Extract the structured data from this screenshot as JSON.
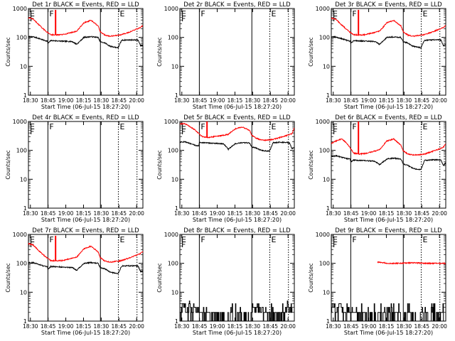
{
  "colors": {
    "events": "#000000",
    "lld": "#ff0000",
    "background": "#ffffff",
    "axes": "#000000"
  },
  "common": {
    "ylabel": "Counts/sec",
    "xlabel": "Start Time (06-Jul-15 18:27:20)",
    "y_scale": "log",
    "y_range": [
      1,
      1000
    ],
    "y_ticks": [
      {
        "value": 1,
        "label": "1"
      },
      {
        "value": 10,
        "label": "10"
      },
      {
        "value": 100,
        "label": "100"
      },
      {
        "value": 1000,
        "label": "1000"
      }
    ],
    "x_range_minutes": [
      1.0,
      98.0
    ],
    "x_ticks": [
      {
        "minute": 2.67,
        "label": "18:30"
      },
      {
        "minute": 17.67,
        "label": "18:45"
      },
      {
        "minute": 32.67,
        "label": "19:00"
      },
      {
        "minute": 47.67,
        "label": "18:15"
      },
      {
        "minute": 62.67,
        "label": "18:30"
      },
      {
        "minute": 77.67,
        "label": "18:45"
      },
      {
        "minute": 92.67,
        "label": "20:00"
      }
    ],
    "markers": [
      {
        "minute": 17.5,
        "label": "F",
        "style": "solid"
      },
      {
        "minute": 62.0,
        "label": "",
        "style": "solid"
      },
      {
        "minute": 77.2,
        "label": "E",
        "style": "dotted"
      },
      {
        "minute": 93.0,
        "label": "",
        "style": "dotted"
      }
    ],
    "left_markers": [
      {
        "label": "E"
      },
      {
        "label": "F"
      }
    ]
  },
  "chart_data": [
    {
      "type": "line",
      "title": "Det 1r BLACK = Events, RED = LLD",
      "series": [
        {
          "name": "Events",
          "color": "#000000",
          "profile": "normal",
          "x": [
            1,
            5,
            10,
            14,
            17,
            17.5,
            20,
            30,
            38,
            42,
            48,
            54,
            60,
            62,
            66,
            70,
            74,
            77,
            80,
            86,
            92,
            94,
            96,
            98
          ],
          "y": [
            105,
            105,
            92,
            80,
            75,
            62,
            78,
            74,
            72,
            58,
            100,
            106,
            100,
            70,
            64,
            50,
            46,
            44,
            80,
            82,
            82,
            80,
            52,
            55
          ]
        },
        {
          "name": "LLD",
          "color": "#ff0000",
          "profile": "normal",
          "x": [
            1,
            5,
            10,
            14,
            17,
            20,
            25,
            30,
            38,
            42,
            48,
            54,
            60,
            62,
            66,
            70,
            74,
            77,
            80,
            86,
            92,
            96,
            98
          ],
          "y": [
            480,
            430,
            270,
            190,
            150,
            125,
            122,
            125,
            150,
            165,
            320,
            390,
            250,
            155,
            120,
            110,
            115,
            120,
            125,
            150,
            190,
            220,
            260
          ]
        }
      ],
      "spike": {
        "minute": 24,
        "value": 900,
        "color": "#ff0000"
      }
    },
    {
      "type": "line",
      "title": "Det 2r BLACK = Events, RED = LLD",
      "series": []
    },
    {
      "type": "line",
      "title": "Det 3r BLACK = Events, RED = LLD",
      "series": [
        {
          "name": "Events",
          "color": "#000000",
          "profile": "normal",
          "x": [
            1,
            5,
            10,
            14,
            17,
            17.5,
            20,
            30,
            38,
            42,
            48,
            54,
            60,
            62,
            66,
            70,
            74,
            77,
            80,
            86,
            92,
            94,
            96,
            98
          ],
          "y": [
            105,
            102,
            90,
            80,
            75,
            62,
            78,
            74,
            72,
            58,
            100,
            104,
            100,
            70,
            64,
            50,
            46,
            44,
            80,
            82,
            82,
            80,
            52,
            55
          ]
        },
        {
          "name": "LLD",
          "color": "#ff0000",
          "profile": "normal",
          "x": [
            1,
            5,
            10,
            14,
            17,
            20,
            25,
            30,
            38,
            42,
            48,
            54,
            60,
            62,
            66,
            70,
            74,
            77,
            80,
            86,
            92,
            96,
            98
          ],
          "y": [
            470,
            420,
            265,
            190,
            150,
            125,
            122,
            125,
            150,
            165,
            320,
            385,
            250,
            155,
            120,
            110,
            115,
            120,
            125,
            150,
            190,
            220,
            260
          ]
        }
      ],
      "spike": {
        "minute": 24,
        "value": 900,
        "color": "#ff0000"
      }
    },
    {
      "type": "line",
      "title": "Det 4r BLACK = Events, RED = LLD",
      "series": []
    },
    {
      "type": "line",
      "title": "Det 5r BLACK = Events, RED = LLD",
      "series": [
        {
          "name": "Events",
          "color": "#000000",
          "profile": "normal",
          "x": [
            1,
            5,
            10,
            14,
            17,
            17.5,
            20,
            30,
            38,
            42,
            48,
            54,
            60,
            62,
            66,
            70,
            74,
            77,
            80,
            86,
            92,
            94,
            96,
            98
          ],
          "y": [
            190,
            200,
            170,
            150,
            140,
            190,
            185,
            175,
            170,
            110,
            170,
            185,
            180,
            130,
            120,
            100,
            95,
            95,
            185,
            190,
            190,
            175,
            115,
            125
          ]
        },
        {
          "name": "LLD",
          "color": "#ff0000",
          "profile": "normal",
          "x": [
            1,
            5,
            10,
            14,
            17,
            20,
            25,
            30,
            38,
            42,
            48,
            54,
            60,
            62,
            66,
            70,
            74,
            77,
            80,
            86,
            92,
            96,
            98
          ],
          "y": [
            820,
            850,
            650,
            500,
            380,
            300,
            280,
            300,
            330,
            360,
            560,
            640,
            500,
            330,
            260,
            230,
            225,
            230,
            240,
            280,
            330,
            380,
            600
          ]
        }
      ],
      "spike": {
        "minute": 24,
        "value": 1000,
        "color": "#ff0000"
      }
    },
    {
      "type": "line",
      "title": "Det 6r BLACK = Events, RED = LLD",
      "series": [
        {
          "name": "Events",
          "color": "#000000",
          "profile": "normal",
          "x": [
            1,
            5,
            10,
            14,
            17,
            17.5,
            20,
            30,
            38,
            42,
            48,
            54,
            60,
            62,
            66,
            70,
            74,
            77,
            80,
            86,
            92,
            94,
            96,
            98
          ],
          "y": [
            62,
            65,
            58,
            52,
            50,
            40,
            46,
            44,
            42,
            32,
            50,
            54,
            50,
            34,
            30,
            24,
            22,
            22,
            45,
            47,
            47,
            45,
            30,
            38
          ]
        },
        {
          "name": "LLD",
          "color": "#ff0000",
          "profile": "normal",
          "x": [
            1,
            5,
            10,
            14,
            17,
            20,
            25,
            30,
            38,
            42,
            48,
            54,
            60,
            62,
            66,
            70,
            74,
            77,
            80,
            86,
            92,
            96,
            98
          ],
          "y": [
            175,
            210,
            250,
            180,
            120,
            80,
            75,
            78,
            95,
            105,
            210,
            250,
            150,
            95,
            75,
            70,
            70,
            72,
            75,
            90,
            110,
            130,
            170
          ]
        }
      ],
      "spike": {
        "minute": 24,
        "value": 1000,
        "color": "#ff0000"
      }
    },
    {
      "type": "line",
      "title": "Det 7r BLACK = Events, RED = LLD",
      "series": [
        {
          "name": "Events",
          "color": "#000000",
          "profile": "normal",
          "x": [
            1,
            5,
            10,
            14,
            17,
            17.5,
            20,
            30,
            38,
            42,
            48,
            54,
            60,
            62,
            66,
            70,
            74,
            77,
            80,
            86,
            92,
            94,
            96,
            98
          ],
          "y": [
            105,
            105,
            92,
            80,
            75,
            62,
            78,
            74,
            72,
            58,
            100,
            106,
            100,
            70,
            64,
            50,
            46,
            44,
            80,
            82,
            82,
            80,
            52,
            55
          ]
        },
        {
          "name": "LLD",
          "color": "#ff0000",
          "profile": "normal",
          "x": [
            1,
            5,
            10,
            14,
            17,
            20,
            25,
            30,
            38,
            42,
            48,
            54,
            60,
            62,
            66,
            70,
            74,
            77,
            80,
            86,
            92,
            96,
            98
          ],
          "y": [
            480,
            430,
            270,
            190,
            150,
            125,
            122,
            125,
            150,
            165,
            320,
            390,
            250,
            155,
            120,
            110,
            115,
            120,
            125,
            150,
            190,
            220,
            260
          ]
        }
      ],
      "spike": {
        "minute": 24,
        "value": 900,
        "color": "#ff0000"
      }
    },
    {
      "type": "line",
      "title": "Det 8r BLACK = Events, RED = LLD",
      "series": [
        {
          "name": "Events",
          "color": "#000000",
          "profile": "noise",
          "x": [
            1,
            3,
            5,
            7,
            9,
            10,
            11,
            13,
            14,
            16,
            17.5,
            50,
            52,
            54,
            56,
            58,
            60,
            62,
            66,
            74,
            77,
            80,
            82,
            84,
            86,
            88,
            90,
            92,
            94,
            96
          ],
          "y": [
            2,
            3,
            4,
            2,
            5,
            3,
            2,
            4,
            3,
            2,
            2,
            1,
            2,
            1,
            2,
            1,
            1,
            2,
            3,
            2,
            2,
            1,
            2,
            1,
            2,
            1,
            2,
            4,
            2,
            3
          ]
        },
        {
          "name": "LLD",
          "color": "#ff0000",
          "profile": "normal",
          "x": [],
          "y": []
        }
      ]
    },
    {
      "type": "line",
      "title": "Det 9r BLACK = Events, RED = LLD",
      "series": [
        {
          "name": "Events",
          "color": "#000000",
          "profile": "noise",
          "x": [
            1,
            3,
            5,
            7,
            9,
            11,
            13,
            15,
            17,
            40,
            42,
            44,
            46,
            48,
            50,
            52,
            54,
            62,
            66,
            70,
            74,
            78,
            80,
            82,
            84,
            86,
            88,
            90,
            92,
            94,
            96
          ],
          "y": [
            2,
            3,
            2,
            4,
            3,
            2,
            2,
            3,
            2,
            1,
            2,
            1,
            2,
            1,
            2,
            1,
            2,
            1,
            2,
            1,
            1,
            2,
            1,
            2,
            1,
            2,
            1,
            2,
            1,
            2,
            3
          ]
        },
        {
          "name": "LLD",
          "color": "#ff0000",
          "profile": "normal",
          "x": [
            40,
            50,
            60,
            70,
            80,
            90,
            98
          ],
          "y": [
            110,
            100,
            100,
            105,
            100,
            100,
            100
          ]
        }
      ]
    }
  ]
}
